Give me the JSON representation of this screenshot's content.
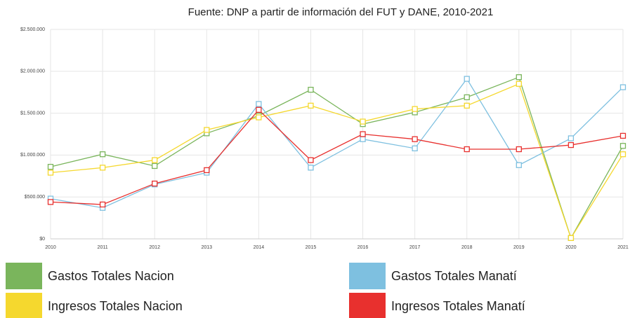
{
  "chart_data": {
    "type": "line",
    "title": "Fuente: DNP a partir de información del FUT y DANE, 2010-2021",
    "x": [
      2010,
      2011,
      2012,
      2013,
      2014,
      2015,
      2016,
      2017,
      2018,
      2019,
      2020,
      2021
    ],
    "xlim": [
      2010,
      2021
    ],
    "xticks": [
      2010,
      2011,
      2012,
      2013,
      2014,
      2015,
      2016,
      2017,
      2018,
      2019,
      2020,
      2021
    ],
    "ylim": [
      0,
      2500000
    ],
    "yticks": [
      {
        "value": 0,
        "label": "$0"
      },
      {
        "value": 500000,
        "label": "$500.000"
      },
      {
        "value": 1000000,
        "label": "$1.000.000"
      },
      {
        "value": 1500000,
        "label": "$1.500.000"
      },
      {
        "value": 2000000,
        "label": "$2.000.000"
      },
      {
        "value": 2500000,
        "label": "$2.500.000"
      }
    ],
    "grid": true,
    "series": [
      {
        "name": "Gastos Totales Nacion",
        "color": "#7ab55c",
        "values": [
          860000,
          1010000,
          870000,
          1260000,
          1470000,
          1780000,
          1370000,
          1510000,
          1690000,
          1930000,
          10000,
          1110000
        ]
      },
      {
        "name": "Gastos Totales Manatí",
        "color": "#7ec0e0",
        "values": [
          480000,
          370000,
          650000,
          790000,
          1610000,
          850000,
          1190000,
          1080000,
          1910000,
          880000,
          1200000,
          1810000
        ]
      },
      {
        "name": "Ingresos Totales Nacion",
        "color": "#f5d82e",
        "values": [
          790000,
          850000,
          940000,
          1300000,
          1450000,
          1590000,
          1400000,
          1550000,
          1590000,
          1850000,
          10000,
          1010000
        ]
      },
      {
        "name": "Ingresos Totales Manatí",
        "color": "#e8302e",
        "values": [
          440000,
          410000,
          660000,
          820000,
          1540000,
          940000,
          1250000,
          1190000,
          1070000,
          1070000,
          1120000,
          1230000
        ]
      }
    ]
  }
}
